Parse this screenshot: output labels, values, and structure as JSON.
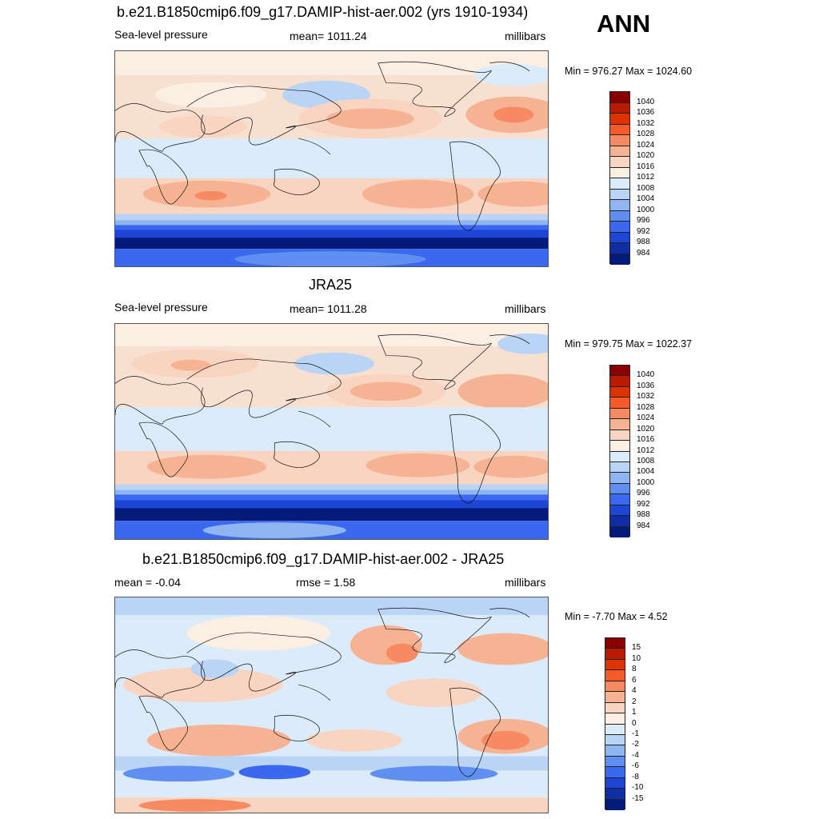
{
  "season": "ANN",
  "panels": [
    {
      "title": "b.e21.B1850cmip6.f09_g17.DAMIP-hist-aer.002 (yrs 1910-1934)",
      "left_label": "Sea-level pressure",
      "center_label": "mean= 1011.24",
      "right_label": "millibars",
      "minmax": "Min = 976.27 Max = 1024.60",
      "colorbar_labels": [
        "1040",
        "1036",
        "1032",
        "1028",
        "1024",
        "1020",
        "1016",
        "1012",
        "1008",
        "1004",
        "1000",
        "996",
        "992",
        "988",
        "984"
      ],
      "colorbar_colors": [
        "#8a0000",
        "#b81b00",
        "#dd3300",
        "#f55a2a",
        "#f78a62",
        "#f6b394",
        "#f8d4c1",
        "#fbeee3",
        "#dcebfa",
        "#b9d4f5",
        "#8fb6f0",
        "#5f8ff0",
        "#3a68ee",
        "#1d45d6",
        "#0f2ea6",
        "#041a78"
      ]
    },
    {
      "title": "JRA25",
      "left_label": "Sea-level pressure",
      "center_label": "mean= 1011.28",
      "right_label": "millibars",
      "minmax": "Min = 979.75 Max = 1022.37",
      "colorbar_labels": [
        "1040",
        "1036",
        "1032",
        "1028",
        "1024",
        "1020",
        "1016",
        "1012",
        "1008",
        "1004",
        "1000",
        "996",
        "992",
        "988",
        "984"
      ],
      "colorbar_colors": [
        "#8a0000",
        "#b81b00",
        "#dd3300",
        "#f55a2a",
        "#f78a62",
        "#f6b394",
        "#f8d4c1",
        "#fbeee3",
        "#dcebfa",
        "#b9d4f5",
        "#8fb6f0",
        "#5f8ff0",
        "#3a68ee",
        "#1d45d6",
        "#0f2ea6",
        "#041a78"
      ]
    },
    {
      "title": "b.e21.B1850cmip6.f09_g17.DAMIP-hist-aer.002 - JRA25",
      "left_label": "mean =  -0.04",
      "center_label": "rmse =   1.58",
      "right_label": "millibars",
      "minmax": "Min =  -7.70 Max =   4.52",
      "colorbar_labels": [
        "15",
        "10",
        "8",
        "6",
        "4",
        "2",
        "1",
        "0",
        "-1",
        "-2",
        "-4",
        "-6",
        "-8",
        "-10",
        "-15"
      ],
      "colorbar_colors": [
        "#8a0000",
        "#b81b00",
        "#dd3300",
        "#f55a2a",
        "#f78a62",
        "#f6b394",
        "#f8d4c1",
        "#fbeee3",
        "#dcebfa",
        "#b9d4f5",
        "#8fb6f0",
        "#5f8ff0",
        "#3a68ee",
        "#1d45d6",
        "#0f2ea6",
        "#041a78"
      ]
    }
  ]
}
